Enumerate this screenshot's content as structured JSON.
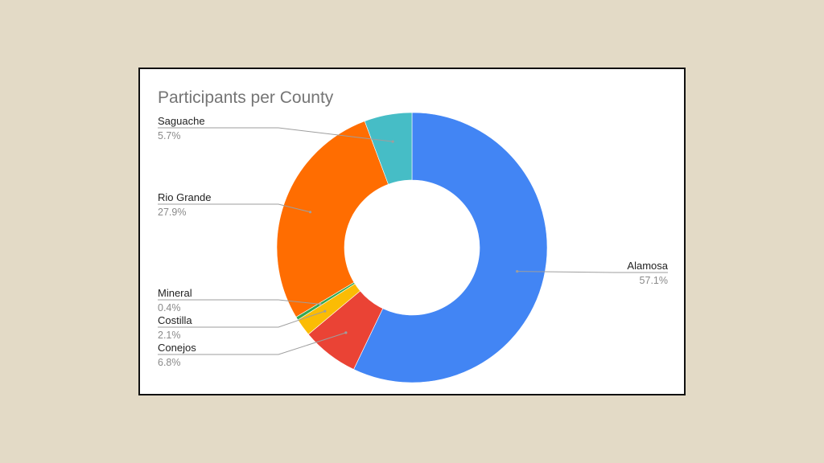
{
  "chart_data": {
    "type": "pie",
    "donut": true,
    "title": "Participants per County",
    "slices": [
      {
        "label": "Alamosa",
        "pct": 57.1,
        "pct_label": "57.1%",
        "color": "#4285f4"
      },
      {
        "label": "Conejos",
        "pct": 6.8,
        "pct_label": "6.8%",
        "color": "#ea4335"
      },
      {
        "label": "Costilla",
        "pct": 2.1,
        "pct_label": "2.1%",
        "color": "#fbbc04"
      },
      {
        "label": "Mineral",
        "pct": 0.4,
        "pct_label": "0.4%",
        "color": "#34a853"
      },
      {
        "label": "Rio Grande",
        "pct": 27.9,
        "pct_label": "27.9%",
        "color": "#ff6d01"
      },
      {
        "label": "Saguache",
        "pct": 5.7,
        "pct_label": "5.7%",
        "color": "#46bdc6"
      }
    ],
    "legend": "none"
  }
}
